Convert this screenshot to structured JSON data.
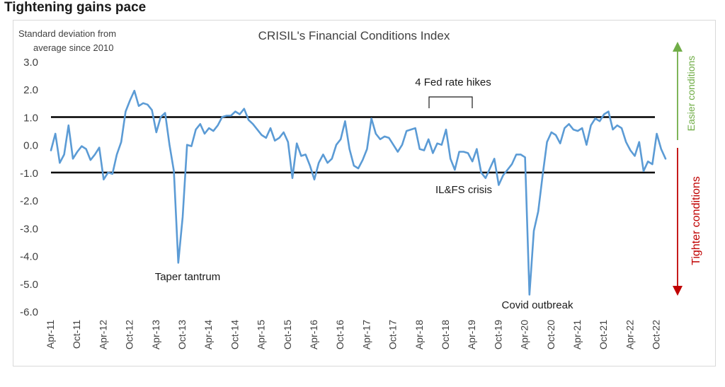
{
  "heading": "Tightening gains pace",
  "colors": {
    "line": "#5b9bd5",
    "easier": "#70ad47",
    "tighter": "#c00000",
    "threshold": "#000000"
  },
  "chart_data": {
    "type": "line",
    "title": "CRISIL's Financial Conditions Index",
    "ylabel_lines": [
      "Standard deviation from",
      "average since 2010"
    ],
    "ylim": [
      -6.0,
      3.0
    ],
    "yticks": [
      3.0,
      2.0,
      1.0,
      0.0,
      -1.0,
      -2.0,
      -3.0,
      -4.0,
      -5.0,
      -6.0
    ],
    "ytick_labels": [
      "3.0",
      "2.0",
      "1.0",
      "0.0",
      "-1.0",
      "-2.0",
      "-3.0",
      "-4.0",
      "-5.0",
      "-6.0"
    ],
    "xtick_labels": [
      "Apr-11",
      "Oct-11",
      "Apr-12",
      "Oct-12",
      "Apr-13",
      "Oct-13",
      "Apr-14",
      "Oct-14",
      "Apr-15",
      "Oct-15",
      "Apr-16",
      "Oct-16",
      "Apr-17",
      "Oct-17",
      "Apr-18",
      "Oct-18",
      "Apr-19",
      "Oct-19",
      "Apr-20",
      "Oct-20",
      "Apr-21",
      "Oct-21",
      "Apr-22",
      "Oct-22"
    ],
    "x_start": "Apr-11",
    "x_end": "Oct-22",
    "reference_lines": [
      1.0,
      -1.0
    ],
    "series": [
      {
        "values": [
          -0.2,
          0.4,
          -0.65,
          -0.35,
          0.7,
          -0.5,
          -0.25,
          -0.05,
          -0.15,
          -0.55,
          -0.35,
          -0.1,
          -1.25,
          -1.0,
          -1.05,
          -0.35,
          0.1,
          1.2,
          1.6,
          1.95,
          1.4,
          1.5,
          1.45,
          1.25,
          0.45,
          1.0,
          1.15,
          0.0,
          -0.95,
          -4.25,
          -2.6,
          0.0,
          -0.05,
          0.55,
          0.75,
          0.4,
          0.6,
          0.5,
          0.7,
          1.0,
          1.05,
          1.05,
          1.2,
          1.1,
          1.3,
          0.9,
          0.75,
          0.55,
          0.35,
          0.25,
          0.6,
          0.15,
          0.25,
          0.45,
          0.1,
          -1.2,
          0.05,
          -0.4,
          -0.35,
          -0.75,
          -1.25,
          -0.65,
          -0.35,
          -0.65,
          -0.5,
          0.0,
          0.2,
          0.85,
          -0.15,
          -0.75,
          -0.85,
          -0.55,
          -0.15,
          0.95,
          0.4,
          0.2,
          0.3,
          0.25,
          0.0,
          -0.25,
          0.0,
          0.5,
          0.55,
          0.6,
          -0.15,
          -0.2,
          0.2,
          -0.3,
          0.05,
          0.0,
          0.55,
          -0.5,
          -0.9,
          -0.25,
          -0.25,
          -0.3,
          -0.6,
          -0.15,
          -1.0,
          -1.2,
          -0.85,
          -0.5,
          -1.45,
          -1.1,
          -0.9,
          -0.7,
          -0.35,
          -0.35,
          -0.45,
          -5.4,
          -3.1,
          -2.4,
          -1.1,
          0.1,
          0.45,
          0.35,
          0.05,
          0.6,
          0.75,
          0.55,
          0.5,
          0.6,
          0.0,
          0.7,
          0.95,
          0.85,
          1.1,
          1.2,
          0.55,
          0.7,
          0.6,
          0.1,
          -0.2,
          -0.4,
          0.1,
          -0.95,
          -0.6,
          -0.7,
          0.4,
          -0.15,
          -0.5
        ]
      }
    ],
    "annotations": {
      "fed_hikes": "4 Fed rate hikes",
      "ilfs": "IL&FS crisis",
      "taper": "Taper tantrum",
      "covid": "Covid outbreak",
      "easier": "Easier conditions",
      "tighter": "Tighter conditions"
    },
    "grid": false,
    "legend": "none"
  }
}
